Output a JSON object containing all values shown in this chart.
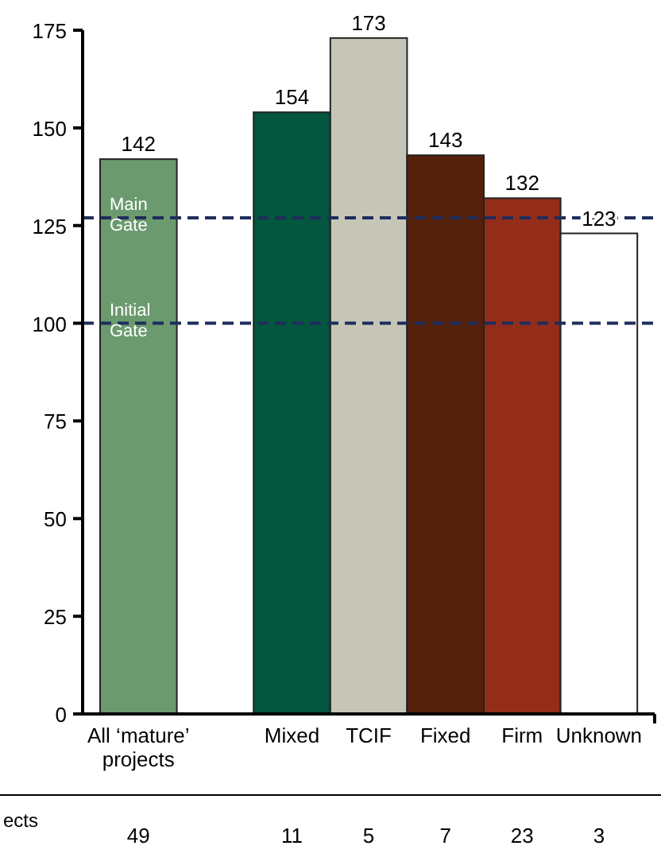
{
  "chart_data": {
    "type": "bar",
    "categories": [
      "All ‘mature’ projects",
      "Mixed",
      "TCIF",
      "Fixed",
      "Firm",
      "Unknown"
    ],
    "values": [
      142,
      154,
      173,
      143,
      132,
      123
    ],
    "colors": [
      "#6a9a6e",
      "#02573e",
      "#c6c6b8",
      "#55200a",
      "#932d1a",
      "#ffffff"
    ],
    "data_labels": true,
    "ylim": [
      0,
      175
    ],
    "yticks": [
      0,
      25,
      50,
      75,
      100,
      125,
      150,
      175
    ],
    "grid": false,
    "ref_lines": [
      {
        "axis": "y",
        "value": 127,
        "label": "Main Gate",
        "color": "#1f2d5c",
        "line_style": "dashed"
      },
      {
        "axis": "y",
        "value": 100,
        "label": "Initial Gate",
        "color": "#1f2d5c",
        "line_style": "dashed"
      }
    ],
    "annotations": [
      "ects",
      "49",
      "11",
      "5",
      "7",
      "23",
      "3"
    ]
  }
}
